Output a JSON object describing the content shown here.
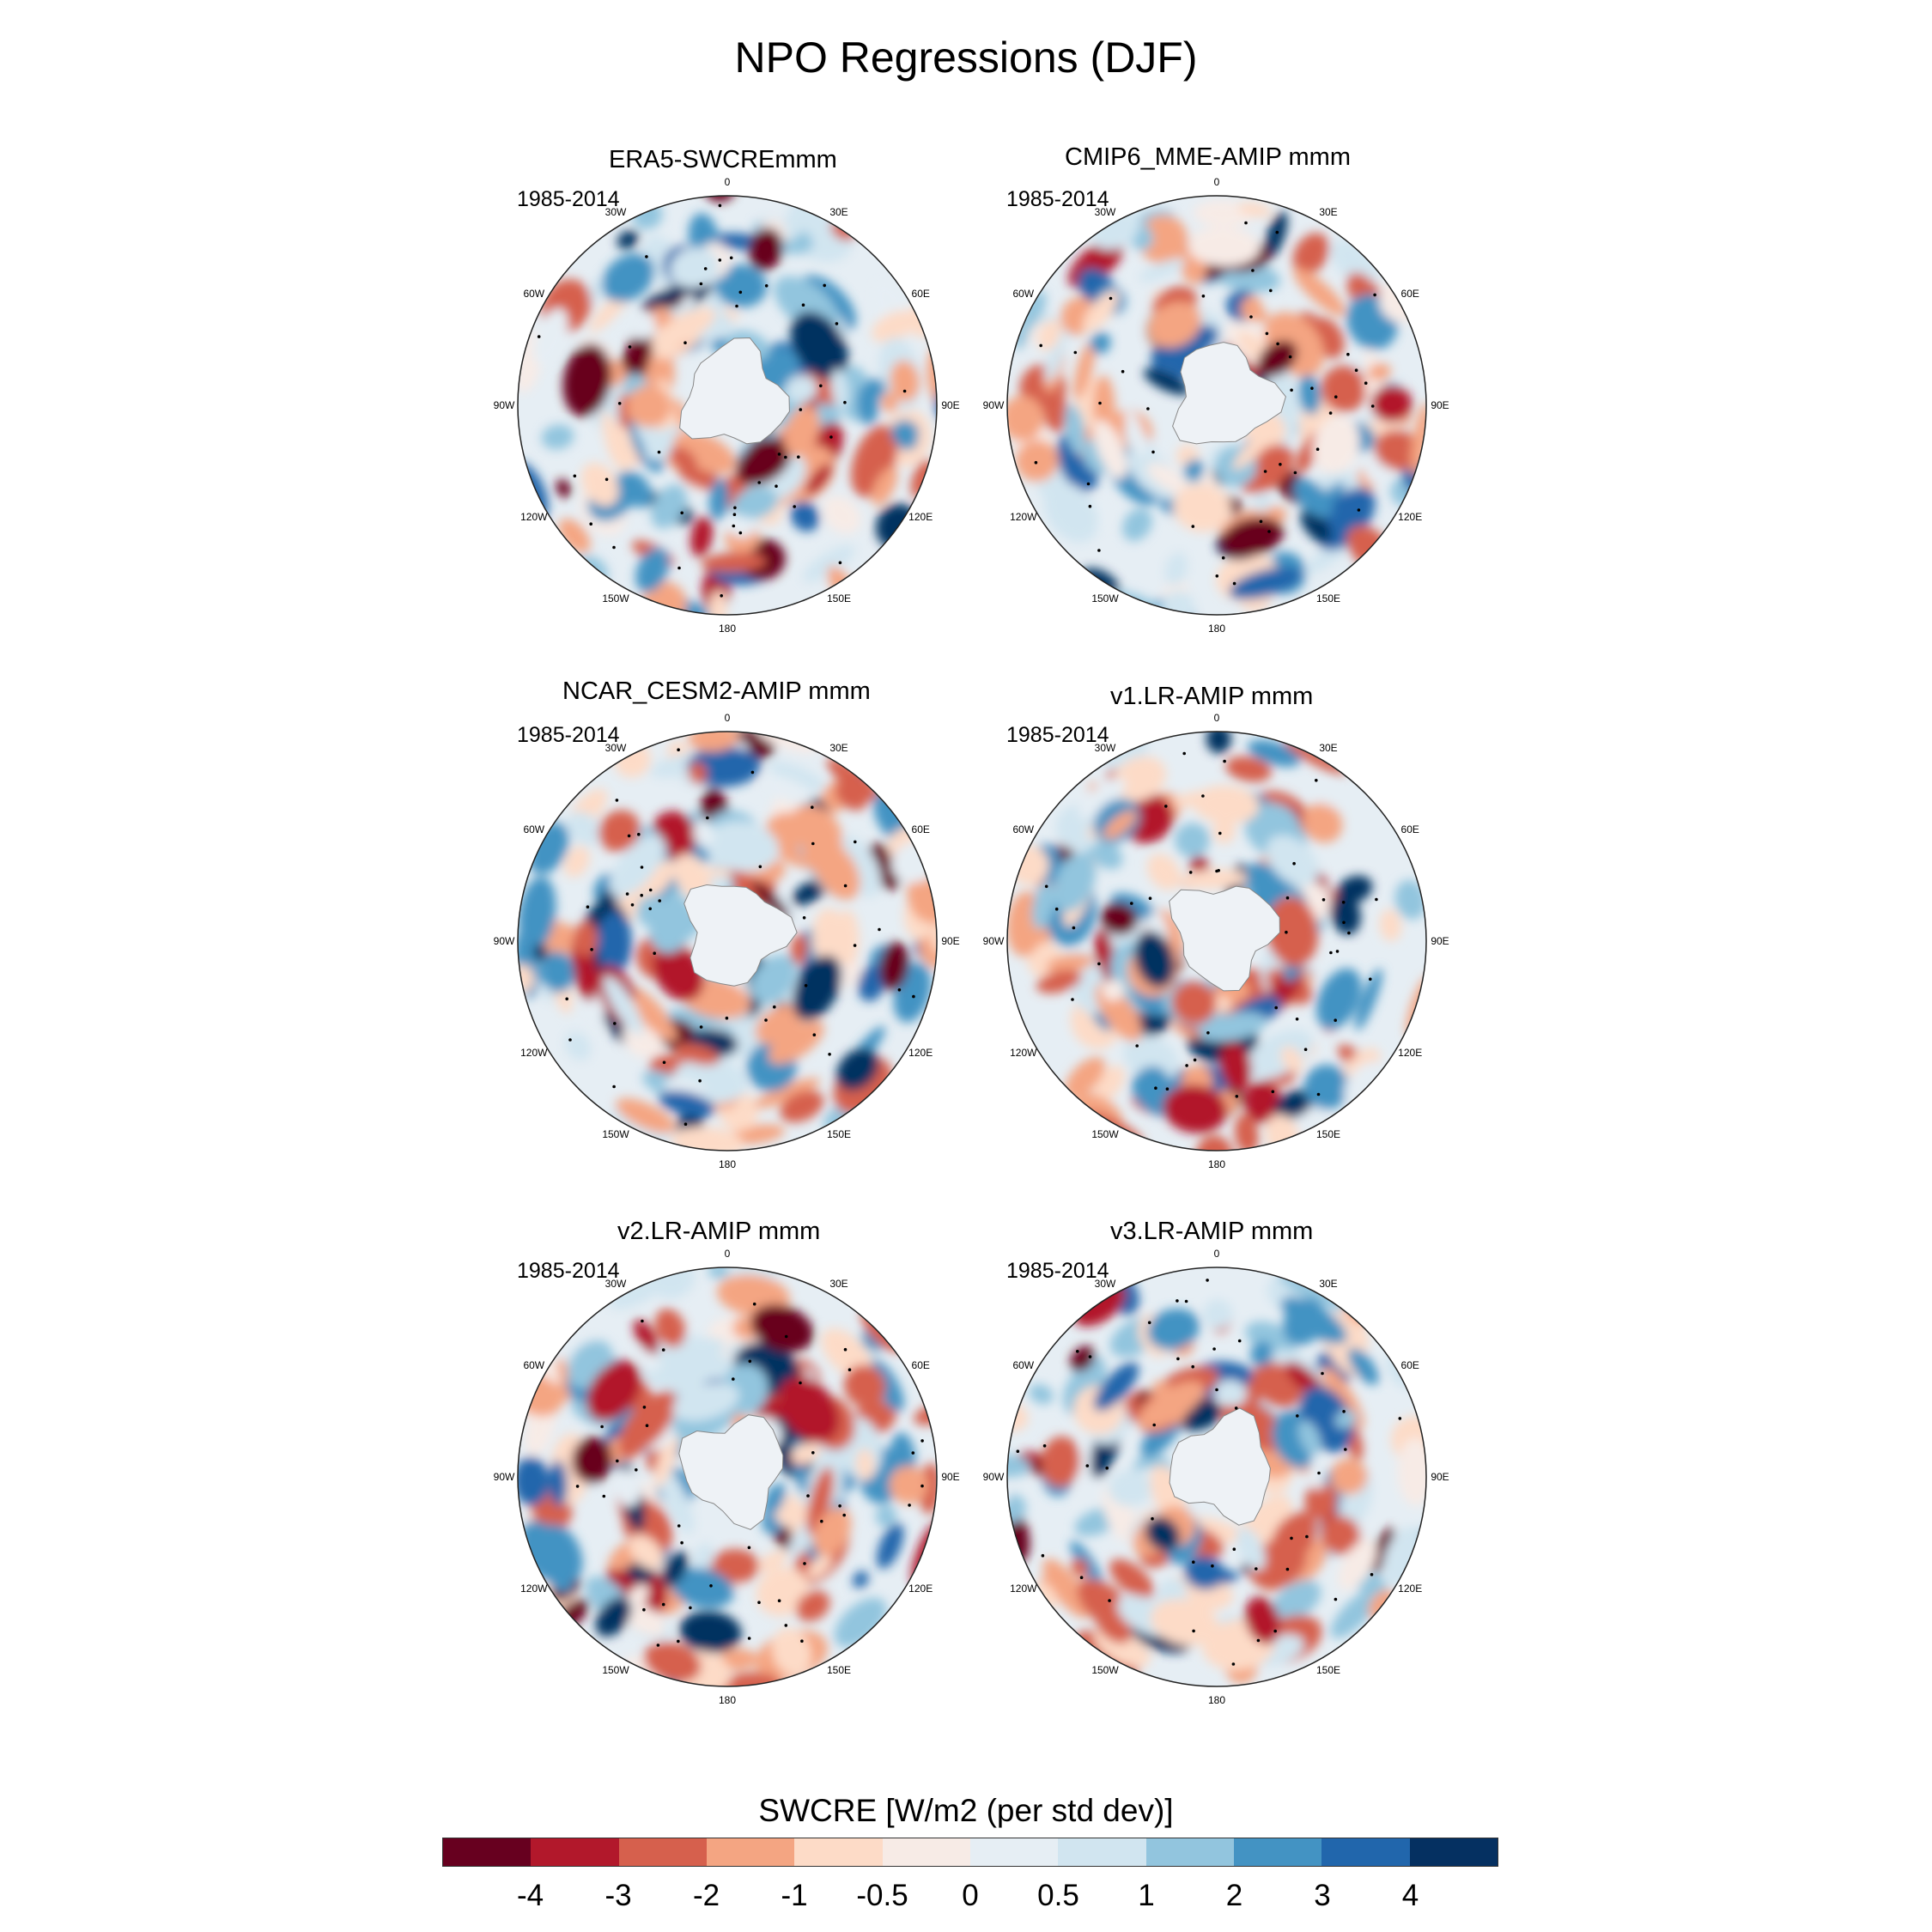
{
  "figure": {
    "title": "NPO Regressions (DJF)",
    "colorbar_label": "SWCRE [W/m2 (per std dev)]"
  },
  "colorbar": {
    "colors": [
      "#67001f",
      "#b2182b",
      "#d6604d",
      "#f4a582",
      "#fddbc7",
      "#f7ebe6",
      "#e6eef4",
      "#d1e5f0",
      "#92c5de",
      "#4393c3",
      "#2166ac",
      "#053061"
    ],
    "tick_labels": [
      "-4",
      "-3",
      "-2",
      "-1",
      "-0.5",
      "0",
      "0.5",
      "1",
      "2",
      "3",
      "4"
    ]
  },
  "map_labels": {
    "lon_labels": [
      "0",
      "30E",
      "60E",
      "90E",
      "120E",
      "150E",
      "180",
      "150W",
      "120W",
      "90W",
      "60W",
      "30W"
    ]
  },
  "panels": [
    {
      "title": "ERA5-SWCREmmm",
      "period": "1985-2014"
    },
    {
      "title": "CMIP6_MME-AMIP  mmm",
      "period": "1985-2014"
    },
    {
      "title": "NCAR_CESM2-AMIP  mmm",
      "period": "1985-2014"
    },
    {
      "title": "v1.LR-AMIP  mmm",
      "period": "1985-2014"
    },
    {
      "title": "v2.LR-AMIP  mmm",
      "period": "1985-2014"
    },
    {
      "title": "v3.LR-AMIP  mmm",
      "period": "1985-2014"
    }
  ]
}
